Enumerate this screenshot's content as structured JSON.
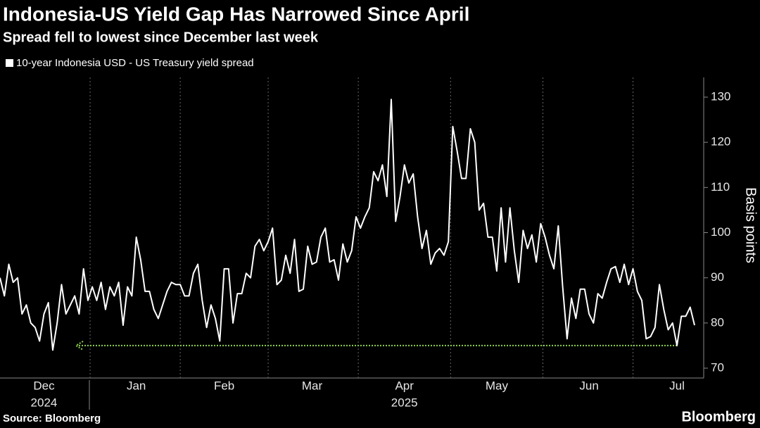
{
  "chart_data": {
    "type": "line",
    "title": "Indonesia-US Yield Gap Has Narrowed Since April",
    "subtitle": "Spread fell to lowest since December last week",
    "y_label": "Basis points",
    "source": "Source: Bloomberg",
    "brand": "Bloomberg",
    "series": [
      {
        "name": "10-year Indonesia USD - US Treasury yield spread",
        "color": "#ffffff",
        "values": [
          90,
          86,
          93,
          89,
          90,
          82,
          84,
          80,
          79,
          76,
          82,
          84.5,
          74,
          80,
          88.5,
          82,
          84,
          86,
          82,
          92,
          85,
          88,
          85,
          89,
          83,
          88,
          86,
          89,
          79.5,
          88,
          86,
          99,
          94,
          87,
          87,
          83,
          81,
          84,
          87,
          89,
          88.5,
          88.5,
          86,
          86,
          91,
          93,
          85,
          79,
          84,
          81,
          76,
          92,
          92,
          80,
          86.5,
          86.5,
          91,
          90,
          97,
          98.5,
          96,
          98,
          101,
          88.5,
          89.5,
          95,
          91,
          98.5,
          87,
          87.5,
          97,
          93,
          93.5,
          99,
          101,
          93.5,
          94,
          89.5,
          97.5,
          93.5,
          96,
          103.5,
          101,
          103.5,
          105.5,
          113.5,
          111.5,
          115,
          108,
          129.5,
          102.5,
          108,
          115,
          111,
          113,
          103.5,
          96.5,
          100.5,
          93,
          95.5,
          96.5,
          95,
          98,
          123.5,
          118,
          112,
          112,
          123,
          120,
          105,
          106.5,
          99,
          99,
          91.5,
          105.5,
          93.5,
          105.5,
          96,
          89,
          100.5,
          96.5,
          99.5,
          93.5,
          102,
          99,
          95,
          92,
          101.5,
          88,
          76.5,
          85.5,
          81,
          87.5,
          87.5,
          82,
          80,
          86.5,
          85.5,
          89,
          92,
          92.5,
          89,
          93,
          88.5,
          92,
          87,
          85,
          76.5,
          77,
          79,
          88.5,
          83,
          78.5,
          80,
          75,
          81.5,
          81.5,
          83.5,
          79.5
        ]
      }
    ],
    "categories": [
      null,
      null,
      null,
      null,
      null,
      null,
      null,
      null,
      null,
      null,
      "Dec",
      null,
      null,
      null,
      null,
      null,
      null,
      null,
      null,
      null,
      null,
      null,
      null,
      null,
      null,
      null,
      null,
      null,
      null,
      null,
      null,
      "Jan",
      null,
      null,
      null,
      null,
      null,
      null,
      null,
      null,
      null,
      null,
      null,
      null,
      null,
      null,
      null,
      null,
      null,
      null,
      null,
      "Feb",
      null,
      null,
      null,
      null,
      null,
      null,
      null,
      null,
      null,
      null,
      null,
      null,
      null,
      null,
      null,
      null,
      null,
      null,
      null,
      "Mar",
      null,
      null,
      null,
      null,
      null,
      null,
      null,
      null,
      null,
      null,
      null,
      null,
      null,
      null,
      null,
      null,
      null,
      null,
      null,
      null,
      "Apr",
      null,
      null,
      null,
      null,
      null,
      null,
      null,
      null,
      null,
      null,
      null,
      null,
      null,
      null,
      null,
      null,
      null,
      null,
      null,
      null,
      "May",
      null,
      null,
      null,
      null,
      null,
      null,
      null,
      null,
      null,
      null,
      null,
      null,
      null,
      null,
      null,
      null,
      null,
      null,
      null,
      null,
      "Jun",
      null,
      null,
      null,
      null,
      null,
      null,
      null,
      null,
      null,
      null,
      null,
      null,
      null,
      null,
      null,
      null,
      null,
      null,
      null,
      "Jul",
      null,
      null,
      null,
      null
    ],
    "category_years": [
      null,
      null,
      null,
      null,
      null,
      null,
      null,
      null,
      null,
      null,
      "2024",
      null,
      null,
      null,
      null,
      null,
      null,
      null,
      null,
      null,
      null,
      null,
      null,
      null,
      null,
      null,
      null,
      null,
      null,
      null,
      null,
      null,
      null,
      null,
      null,
      null,
      null,
      null,
      null,
      null,
      null,
      null,
      null,
      null,
      null,
      null,
      null,
      null,
      null,
      null,
      null,
      null,
      null,
      null,
      null,
      null,
      null,
      null,
      null,
      null,
      null,
      null,
      null,
      null,
      null,
      null,
      null,
      null,
      null,
      null,
      null,
      null,
      null,
      null,
      null,
      null,
      null,
      null,
      null,
      null,
      null,
      null,
      null,
      null,
      null,
      null,
      null,
      null,
      null,
      null,
      null,
      null,
      "2025",
      null,
      null,
      null,
      null,
      null,
      null,
      null,
      null,
      null,
      null,
      null,
      null,
      null,
      null,
      null,
      null,
      null,
      null,
      null,
      null,
      null,
      null,
      null,
      null,
      null,
      null,
      null,
      null,
      null,
      null,
      null,
      null,
      null,
      null,
      null,
      null,
      null,
      null,
      null,
      null,
      null,
      null,
      null,
      null,
      null,
      null,
      null,
      null,
      null,
      null,
      null,
      null,
      null,
      null,
      null,
      null,
      null,
      null,
      null,
      null,
      null,
      null,
      null,
      null,
      null,
      null
    ],
    "ylim": [
      70,
      130
    ],
    "yticks": [
      70,
      80,
      90,
      100,
      110,
      120,
      130
    ],
    "annotation_level": {
      "value": 75,
      "color": "#8fd14f"
    },
    "grid": "x"
  }
}
